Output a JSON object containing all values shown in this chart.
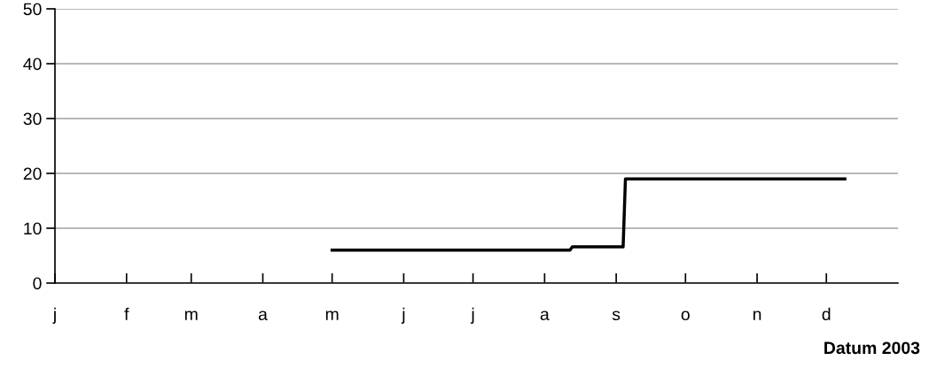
{
  "chart_data": {
    "type": "line",
    "xlabel": "Datum 2003",
    "categories": [
      "j",
      null,
      null,
      null,
      null,
      null,
      null,
      null,
      null,
      null,
      null,
      null,
      null,
      null,
      null,
      null,
      null,
      null,
      null,
      null,
      null,
      null,
      null,
      null,
      null,
      null,
      null,
      null,
      null,
      null,
      null,
      "f",
      null,
      null,
      null,
      null,
      null,
      null,
      null,
      null,
      null,
      null,
      null,
      null,
      null,
      null,
      null,
      null,
      null,
      null,
      null,
      null,
      null,
      null,
      null,
      null,
      null,
      null,
      null,
      "m",
      null,
      null,
      null,
      null,
      null,
      null,
      null,
      null,
      null,
      null,
      null,
      null,
      null,
      null,
      null,
      null,
      null,
      null,
      null,
      null,
      null,
      null,
      null,
      null,
      null,
      null,
      null,
      null,
      null,
      null,
      "a",
      null,
      null,
      null,
      null,
      null,
      null,
      null,
      null,
      null,
      null,
      null,
      null,
      null,
      null,
      null,
      null,
      null,
      null,
      null,
      null,
      null,
      null,
      null,
      null,
      null,
      null,
      null,
      null,
      null,
      "m",
      null,
      null,
      null,
      null,
      null,
      null,
      null,
      null,
      null,
      null,
      null,
      null,
      null,
      null,
      null,
      null,
      null,
      null,
      null,
      null,
      null,
      null,
      null,
      null,
      null,
      null,
      null,
      null,
      null,
      null,
      "j",
      null,
      null,
      null,
      null,
      null,
      null,
      null,
      null,
      null,
      null,
      null,
      null,
      null,
      null,
      null,
      null,
      null,
      null,
      null,
      null,
      null,
      null,
      null,
      null,
      null,
      null,
      null,
      null,
      null,
      "j",
      null,
      null,
      null,
      null,
      null,
      null,
      null,
      null,
      null,
      null,
      null,
      null,
      null,
      null,
      null,
      null,
      null,
      null,
      null,
      null,
      null,
      null,
      null,
      null,
      null,
      null,
      null,
      null,
      null,
      null,
      "a",
      null,
      null,
      null,
      null,
      null,
      null,
      null,
      null,
      null,
      null,
      null,
      null,
      null,
      null,
      null,
      null,
      null,
      null,
      null,
      null,
      null,
      null,
      null,
      null,
      null,
      null,
      null,
      null,
      null,
      null,
      "s",
      null,
      null,
      null,
      null,
      null,
      null,
      null,
      null,
      null,
      null,
      null,
      null,
      null,
      null,
      null,
      null,
      null,
      null,
      null,
      null,
      null,
      null,
      null,
      null,
      null,
      null,
      null,
      null,
      null,
      "o",
      null,
      null,
      null,
      null,
      null,
      null,
      null,
      null,
      null,
      null,
      null,
      null,
      null,
      null,
      null,
      null,
      null,
      null,
      null,
      null,
      null,
      null,
      null,
      null,
      null,
      null,
      null,
      null,
      null,
      null,
      "n",
      null,
      null,
      null,
      null,
      null,
      null,
      null,
      null,
      null,
      null,
      null,
      null,
      null,
      null,
      null,
      null,
      null,
      null,
      null,
      null,
      null,
      null,
      null,
      null,
      null,
      null,
      null,
      null,
      null,
      "d",
      null,
      null,
      null,
      null,
      null,
      null,
      null,
      null,
      null,
      null,
      null,
      null,
      null,
      null,
      null,
      null,
      null,
      null,
      null,
      null,
      null,
      null,
      null,
      null,
      null,
      null,
      null,
      null,
      null,
      null
    ],
    "series": [
      {
        "color": "#000000",
        "values": [
          null,
          null,
          null,
          null,
          null,
          null,
          null,
          null,
          null,
          null,
          null,
          null,
          null,
          null,
          null,
          null,
          null,
          null,
          null,
          null,
          null,
          null,
          null,
          null,
          null,
          null,
          null,
          null,
          null,
          null,
          null,
          null,
          null,
          null,
          null,
          null,
          null,
          null,
          null,
          null,
          null,
          null,
          null,
          null,
          null,
          null,
          null,
          null,
          null,
          null,
          null,
          null,
          null,
          null,
          null,
          null,
          null,
          null,
          null,
          null,
          null,
          null,
          null,
          null,
          null,
          null,
          null,
          null,
          null,
          null,
          null,
          null,
          null,
          null,
          null,
          null,
          null,
          null,
          null,
          null,
          null,
          null,
          null,
          null,
          null,
          null,
          null,
          null,
          null,
          null,
          null,
          null,
          null,
          null,
          null,
          null,
          null,
          null,
          null,
          null,
          null,
          null,
          null,
          null,
          null,
          null,
          null,
          null,
          null,
          null,
          null,
          null,
          null,
          null,
          null,
          null,
          null,
          null,
          null,
          null,
          6,
          6,
          6,
          6,
          6,
          6,
          6,
          6,
          6,
          6,
          6,
          6,
          6,
          6,
          6,
          6,
          6,
          6,
          6,
          6,
          6,
          6,
          6,
          6,
          6,
          6,
          6,
          6,
          6,
          6,
          6,
          6,
          6,
          6,
          6,
          6,
          6,
          6,
          6,
          6,
          6,
          6,
          6,
          6,
          6,
          6,
          6,
          6,
          6,
          6,
          6,
          6,
          6,
          6,
          6,
          6,
          6,
          6,
          6,
          6,
          6,
          6,
          6,
          6,
          6,
          6,
          6,
          6,
          6,
          6,
          6,
          6,
          6,
          6,
          6,
          6,
          6,
          6,
          6,
          6,
          6,
          6,
          6,
          6,
          6,
          6,
          6,
          6,
          6,
          6,
          6,
          6,
          6,
          6,
          6,
          6,
          6,
          6,
          6,
          6,
          6,
          6,
          6,
          6,
          6.6,
          6.6,
          6.6,
          6.6,
          6.6,
          6.6,
          6.6,
          6.6,
          6.6,
          6.6,
          6.6,
          6.6,
          6.6,
          6.6,
          6.6,
          6.6,
          6.6,
          6.6,
          6.6,
          6.6,
          6.6,
          6.6,
          6.6,
          19,
          19,
          19,
          19,
          19,
          19,
          19,
          19,
          19,
          19,
          19,
          19,
          19,
          19,
          19,
          19,
          19,
          19,
          19,
          19,
          19,
          19,
          19,
          19,
          19,
          19,
          19,
          19,
          19,
          19,
          19,
          19,
          19,
          19,
          19,
          19,
          19,
          19,
          19,
          19,
          19,
          19,
          19,
          19,
          19,
          19,
          19,
          19,
          19,
          19,
          19,
          19,
          19,
          19,
          19,
          19,
          19,
          19,
          19,
          19,
          19,
          19,
          19,
          19,
          19,
          19,
          19,
          19,
          19,
          19,
          19,
          19,
          19,
          19,
          19,
          19,
          19,
          19,
          19,
          19,
          19,
          19,
          19,
          19,
          19,
          19,
          19,
          19,
          19,
          19,
          19,
          19,
          19,
          19,
          19,
          19,
          null,
          null,
          null,
          null,
          null,
          null,
          null,
          null,
          null,
          null,
          null,
          null,
          null,
          null,
          null,
          null,
          null,
          null,
          null,
          null,
          null,
          null
        ]
      }
    ],
    "ylim": [
      0,
      50
    ],
    "yticks": [
      0,
      10,
      20,
      30,
      40,
      50
    ],
    "grid": "y",
    "marker": "none",
    "line_style": "solid"
  }
}
